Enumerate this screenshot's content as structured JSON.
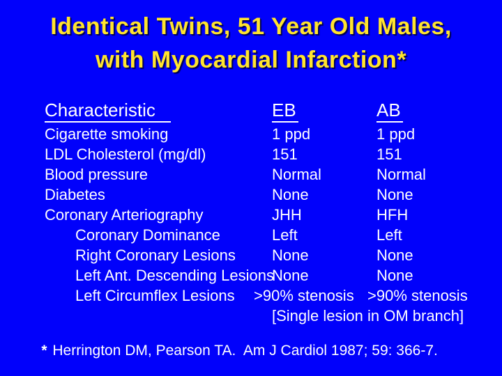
{
  "slide": {
    "background_color": "#0101fb",
    "title_color": "#ffe42e",
    "text_color": "#ffffff"
  },
  "title": {
    "line1": "Identical Twins, 51 Year Old Males,",
    "line2": "with Myocardial Infarction*"
  },
  "table": {
    "headers": [
      "Characteristic",
      "EB",
      "AB"
    ],
    "rows": [
      {
        "label": "Cigarette smoking",
        "eb": "1 ppd",
        "ab": "1 ppd",
        "indent": false
      },
      {
        "label": "LDL Cholesterol (mg/dl)",
        "eb": "151",
        "ab": "151",
        "indent": false
      },
      {
        "label": "Blood pressure",
        "eb": "Normal",
        "ab": "Normal",
        "indent": false
      },
      {
        "label": "Diabetes",
        "eb": "None",
        "ab": "None",
        "indent": false
      },
      {
        "label": "Coronary Arteriography",
        "eb": "JHH",
        "ab": "HFH",
        "indent": false
      },
      {
        "label": "Coronary Dominance",
        "eb": "Left",
        "ab": "Left",
        "indent": true
      },
      {
        "label": "Right Coronary Lesions",
        "eb": "None",
        "ab": "None",
        "indent": true
      },
      {
        "label": "Left Ant. Descending Lesions",
        "eb": "None",
        "ab": "None",
        "indent": true
      },
      {
        "label": "Left Circumflex Lesions",
        "eb": ">90% stenosis",
        "ab": ">90% stenosis",
        "indent": true,
        "wide": true
      },
      {
        "note": "[Single lesion in OM branch]"
      }
    ]
  },
  "footnote": {
    "marker": "*",
    "text": " Herrington DM, Pearson TA.  Am J Cardiol 1987; 59: 366-7."
  }
}
